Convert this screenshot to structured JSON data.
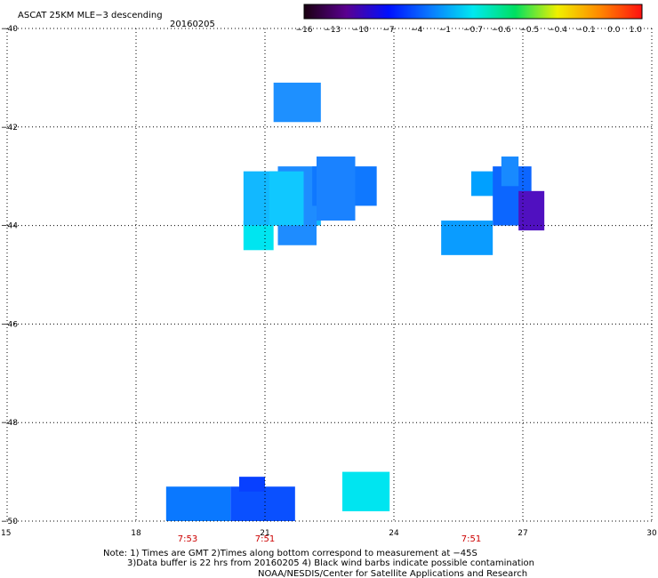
{
  "chart_data": {
    "type": "heatmap",
    "title": "ASCAT 25KM MLE−3 descending",
    "date": "20160205",
    "xlabel": "",
    "ylabel": "",
    "xlim": [
      15,
      30
    ],
    "ylim": [
      -50,
      -40
    ],
    "x_ticks": [
      "15",
      "18",
      "21",
      "24",
      "27",
      "30"
    ],
    "y_ticks": [
      "−40",
      "−42",
      "−44",
      "−46",
      "−48",
      "−50"
    ],
    "grid": true,
    "colorbar": {
      "labels": [
        "−16",
        "−13",
        "−10",
        "−7",
        "−4",
        "−1",
        "−0.7",
        "−0.6",
        "−0.5",
        "−0.4",
        "−0.1",
        "0.0",
        "1.0"
      ],
      "colors": [
        "#1a0010",
        "#5a0090",
        "#0010ff",
        "#0a7bff",
        "#00e8f0",
        "#00e060",
        "#f0f000",
        "#ff8800",
        "#ff1010"
      ]
    },
    "time_labels": [
      {
        "x": 19.2,
        "label": "7:53"
      },
      {
        "x": 21.0,
        "label": "7:51"
      },
      {
        "x": 25.8,
        "label": "7:51"
      }
    ],
    "cells": [
      {
        "x": [
          21.2,
          22.3
        ],
        "y": [
          -41.9,
          -41.1
        ],
        "color": "#1e90ff"
      },
      {
        "x": [
          20.5,
          21.2
        ],
        "y": [
          -44.5,
          -43.9
        ],
        "color": "#00e5f0"
      },
      {
        "x": [
          20.5,
          22.3
        ],
        "y": [
          -44.0,
          -42.9
        ],
        "color": "#12b8ff"
      },
      {
        "x": [
          21.3,
          22.2
        ],
        "y": [
          -44.4,
          -42.8
        ],
        "color": "#1e8cff"
      },
      {
        "x": [
          21.1,
          21.9
        ],
        "y": [
          -44.0,
          -42.9
        ],
        "color": "#10c8ff"
      },
      {
        "x": [
          22.1,
          23.6
        ],
        "y": [
          -43.6,
          -42.8
        ],
        "color": "#0f78ff"
      },
      {
        "x": [
          22.2,
          23.1
        ],
        "y": [
          -43.9,
          -42.6
        ],
        "color": "#1a82ff"
      },
      {
        "x": [
          25.8,
          26.9
        ],
        "y": [
          -43.4,
          -42.9
        ],
        "color": "#00a0ff"
      },
      {
        "x": [
          26.3,
          27.2
        ],
        "y": [
          -44.0,
          -42.8
        ],
        "color": "#0c66ff"
      },
      {
        "x": [
          26.5,
          26.9
        ],
        "y": [
          -43.2,
          -42.6
        ],
        "color": "#188aff"
      },
      {
        "x": [
          26.9,
          27.5
        ],
        "y": [
          -44.1,
          -43.3
        ],
        "color": "#5010c0"
      },
      {
        "x": [
          25.1,
          26.3
        ],
        "y": [
          -44.6,
          -43.9
        ],
        "color": "#0a9cff"
      },
      {
        "x": [
          18.7,
          20.2
        ],
        "y": [
          -50.0,
          -49.3
        ],
        "color": "#0a78ff"
      },
      {
        "x": [
          20.2,
          21.7
        ],
        "y": [
          -50.0,
          -49.3
        ],
        "color": "#0a50ff"
      },
      {
        "x": [
          20.4,
          21.0
        ],
        "y": [
          -49.4,
          -49.1
        ],
        "color": "#0840ff"
      },
      {
        "x": [
          22.8,
          23.9
        ],
        "y": [
          -49.8,
          -49.0
        ],
        "color": "#00e5f0"
      }
    ],
    "notes": [
      "Note: 1) Times are GMT 2)Times along bottom correspond to measurement at −45S",
      "3)Data buffer is 22 hrs from 20160205 4) Black wind barbs indicate possible contamination",
      "NOAA/NESDIS/Center for Satellite Applications and Research"
    ]
  }
}
